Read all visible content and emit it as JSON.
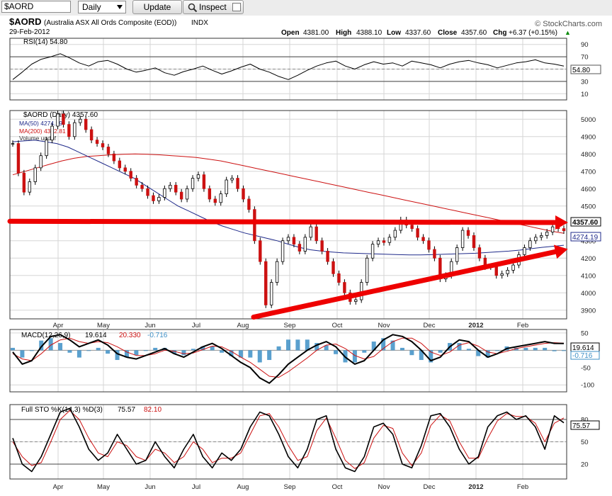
{
  "toolbar": {
    "symbol_value": "$AORD",
    "period_value": "Daily",
    "update_label": "Update",
    "inspect_label": "Inspect"
  },
  "header": {
    "symbol": "$AORD",
    "name": "(Australia ASX All Ords Composite (EOD))",
    "exchange": "INDX",
    "date": "29-Feb-2012",
    "watermark": "© StockCharts.com",
    "ohlc": {
      "open_label": "Open",
      "open": "4381.00",
      "high_label": "High",
      "high": "4388.10",
      "low_label": "Low",
      "low": "4337.60",
      "close_label": "Close",
      "close": "4357.60",
      "chg_label": "Chg",
      "chg": "+6.37 (+0.15%)"
    },
    "up_arrow": "▲"
  },
  "colors": {
    "price_line": "#000000",
    "ma50": "#1f2a8a",
    "ma200": "#cc1111",
    "annotation": "#ee0000",
    "macd_hist": "#3d8fc6",
    "signal": "#cc1111",
    "grid": "#d6d6d6"
  },
  "x_labels": [
    "Apr",
    "May",
    "Jun",
    "Jul",
    "Aug",
    "Sep",
    "Oct",
    "Nov",
    "Dec",
    "2012",
    "Feb"
  ],
  "rsi_panel": {
    "legend": "RSI(14) 54.80",
    "current": "54.80",
    "ticks": [
      "90",
      "70",
      "50",
      "30",
      "10"
    ]
  },
  "price_panel": {
    "legend_main": "$AORD (Daily) 4357.60",
    "legend_ma50": "MA(50) 4274.19",
    "legend_ma200": "MA(200) 4342.81",
    "legend_vol": "Volume undef",
    "last_price": "4357.60",
    "ma50_value": "4274.19",
    "ticks": [
      "5000",
      "4900",
      "4800",
      "4700",
      "4600",
      "4500",
      "4400",
      "4300",
      "4200",
      "4100",
      "4000",
      "3900"
    ]
  },
  "macd_panel": {
    "legend_prefix": "MACD(12,26,9)",
    "macd_value": "19.614",
    "signal_value": "20.330",
    "hist_value": "-0.716",
    "ticks": [
      "50",
      "0",
      "-50",
      "-100"
    ]
  },
  "sto_panel": {
    "legend_prefix": "Full STO %K(14,3) %D(3)",
    "k_value": "75.57",
    "d_value": "82.10",
    "ticks": [
      "80",
      "50",
      "20"
    ]
  },
  "chart_data": {
    "type": "line",
    "title": "$AORD (Australia ASX All Ords Composite (EOD)) INDX",
    "x_axis_months": [
      "Apr",
      "May",
      "Jun",
      "Jul",
      "Aug",
      "Sep",
      "Oct",
      "Nov",
      "Dec",
      "2012",
      "Feb"
    ],
    "price_ylim": [
      3850,
      5050
    ],
    "price_close": [
      4860,
      4690,
      4580,
      4640,
      4720,
      4790,
      4880,
      4960,
      5030,
      4970,
      4900,
      4980,
      5000,
      4940,
      4880,
      4860,
      4840,
      4800,
      4760,
      4720,
      4700,
      4660,
      4620,
      4600,
      4560,
      4530,
      4550,
      4600,
      4620,
      4580,
      4540,
      4600,
      4660,
      4680,
      4600,
      4540,
      4520,
      4570,
      4650,
      4660,
      4600,
      4540,
      4480,
      4300,
      4180,
      3930,
      4060,
      4180,
      4300,
      4320,
      4280,
      4240,
      4320,
      4380,
      4300,
      4240,
      4180,
      4110,
      4060,
      4000,
      3950,
      3960,
      4060,
      4200,
      4280,
      4300,
      4290,
      4320,
      4360,
      4420,
      4390,
      4370,
      4320,
      4300,
      4250,
      4200,
      4080,
      4100,
      4180,
      4260,
      4360,
      4330,
      4260,
      4200,
      4150,
      4150,
      4100,
      4110,
      4130,
      4160,
      4220,
      4260,
      4300,
      4320,
      4330,
      4350,
      4380,
      4370,
      4357.6
    ],
    "ma50": [
      4870,
      4875,
      4880,
      4870,
      4860,
      4840,
      4810,
      4780,
      4750,
      4720,
      4690,
      4660,
      4620,
      4580,
      4540,
      4500,
      4470,
      4440,
      4410,
      4385,
      4365,
      4345,
      4330,
      4315,
      4300,
      4280,
      4262,
      4248,
      4240,
      4235,
      4230,
      4228,
      4226,
      4224,
      4222,
      4220,
      4218,
      4218,
      4220,
      4222,
      4224,
      4226,
      4228,
      4232,
      4236,
      4240,
      4246,
      4254,
      4262,
      4268,
      4274.19
    ],
    "ma200": [
      4680,
      4700,
      4720,
      4740,
      4760,
      4775,
      4785,
      4790,
      4795,
      4798,
      4800,
      4798,
      4795,
      4790,
      4785,
      4780,
      4770,
      4760,
      4745,
      4730,
      4715,
      4700,
      4685,
      4670,
      4655,
      4640,
      4625,
      4610,
      4595,
      4580,
      4565,
      4550,
      4535,
      4520,
      4505,
      4490,
      4475,
      4460,
      4445,
      4430,
      4415,
      4400,
      4385,
      4370,
      4355,
      4342.81
    ],
    "resistance_line": {
      "start": 4412,
      "end": 4405,
      "label": "horizontal resistance"
    },
    "support_line": {
      "start": 3860,
      "end": 4240,
      "label": "rising support"
    },
    "rsi": {
      "ylim": [
        0,
        100
      ],
      "values": [
        33,
        45,
        58,
        66,
        70,
        75,
        68,
        60,
        55,
        62,
        64,
        58,
        50,
        45,
        48,
        52,
        44,
        40,
        46,
        50,
        55,
        48,
        42,
        47,
        53,
        58,
        50,
        45,
        38,
        33,
        40,
        48,
        55,
        60,
        63,
        55,
        50,
        57,
        62,
        58,
        60,
        55,
        63,
        60,
        57,
        52,
        58,
        62,
        64,
        60,
        57,
        52,
        56,
        60,
        62,
        65,
        60,
        58,
        54.8
      ]
    },
    "macd": {
      "ylim": [
        -120,
        60
      ],
      "macd_line": [
        -5,
        -40,
        -30,
        10,
        40,
        45,
        30,
        10,
        20,
        30,
        15,
        -10,
        -20,
        -25,
        -15,
        -5,
        5,
        -10,
        -20,
        -5,
        10,
        20,
        5,
        -15,
        -35,
        -50,
        -80,
        -95,
        -70,
        -40,
        -20,
        0,
        15,
        25,
        10,
        -20,
        -40,
        -30,
        0,
        30,
        45,
        40,
        25,
        0,
        -30,
        -20,
        10,
        30,
        25,
        0,
        -20,
        -10,
        5,
        10,
        15,
        20,
        25,
        20,
        19.614
      ],
      "signal_line": [
        -10,
        -25,
        -30,
        -10,
        15,
        30,
        35,
        25,
        20,
        25,
        22,
        10,
        -5,
        -15,
        -15,
        -10,
        0,
        -3,
        -10,
        -8,
        2,
        12,
        10,
        -3,
        -20,
        -35,
        -55,
        -75,
        -78,
        -62,
        -42,
        -22,
        0,
        15,
        18,
        5,
        -15,
        -25,
        -18,
        5,
        25,
        35,
        35,
        20,
        -5,
        -15,
        -5,
        15,
        22,
        12,
        -5,
        -10,
        -3,
        5,
        10,
        15,
        20,
        22,
        20.33
      ],
      "histogram_last": -0.716
    },
    "stochastic": {
      "ylim": [
        0,
        100
      ],
      "k": [
        55,
        20,
        10,
        30,
        60,
        90,
        95,
        70,
        40,
        25,
        35,
        60,
        40,
        20,
        25,
        50,
        30,
        15,
        40,
        60,
        30,
        15,
        35,
        25,
        40,
        70,
        90,
        85,
        60,
        30,
        15,
        40,
        80,
        85,
        40,
        15,
        10,
        30,
        70,
        75,
        60,
        20,
        15,
        45,
        85,
        88,
        70,
        40,
        20,
        30,
        70,
        85,
        90,
        80,
        85,
        70,
        40,
        85,
        75.57
      ],
      "d": [
        50,
        30,
        18,
        22,
        50,
        80,
        92,
        80,
        55,
        35,
        30,
        50,
        45,
        30,
        25,
        40,
        35,
        22,
        30,
        50,
        40,
        22,
        28,
        28,
        35,
        60,
        85,
        88,
        70,
        45,
        25,
        30,
        65,
        82,
        55,
        25,
        14,
        22,
        55,
        72,
        68,
        35,
        18,
        35,
        72,
        86,
        78,
        50,
        28,
        28,
        55,
        78,
        88,
        84,
        84,
        75,
        50,
        75,
        82.1
      ]
    }
  }
}
